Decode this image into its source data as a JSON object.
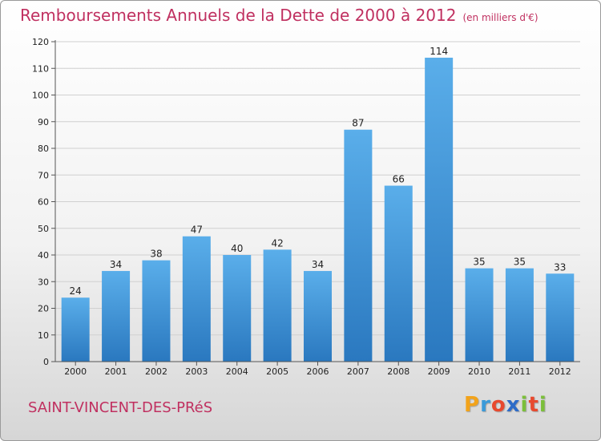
{
  "title": "Remboursements Annuels de la Dette de 2000 à 2012",
  "unit": "(en milliers d'€)",
  "commune": "SAINT-VINCENT-DES-PRéS",
  "logo": {
    "letters": [
      "P",
      "r",
      "o",
      "x",
      "i",
      "t",
      "i"
    ],
    "colors": [
      "#f2a31b",
      "#3a9ad9",
      "#e8492e",
      "#2e6cc8",
      "#7bbf3a",
      "#e8492e",
      "#7bbf3a"
    ]
  },
  "chart_data": {
    "type": "bar",
    "categories": [
      "2000",
      "2001",
      "2002",
      "2003",
      "2004",
      "2005",
      "2006",
      "2007",
      "2008",
      "2009",
      "2010",
      "2011",
      "2012"
    ],
    "values": [
      24,
      34,
      38,
      47,
      40,
      42,
      34,
      87,
      66,
      114,
      35,
      35,
      33
    ],
    "ylim": [
      0,
      120
    ],
    "yticks": [
      0,
      10,
      20,
      30,
      40,
      50,
      60,
      70,
      80,
      90,
      100,
      110,
      120
    ],
    "grid": true,
    "bar_color": "#3b8fd6"
  }
}
